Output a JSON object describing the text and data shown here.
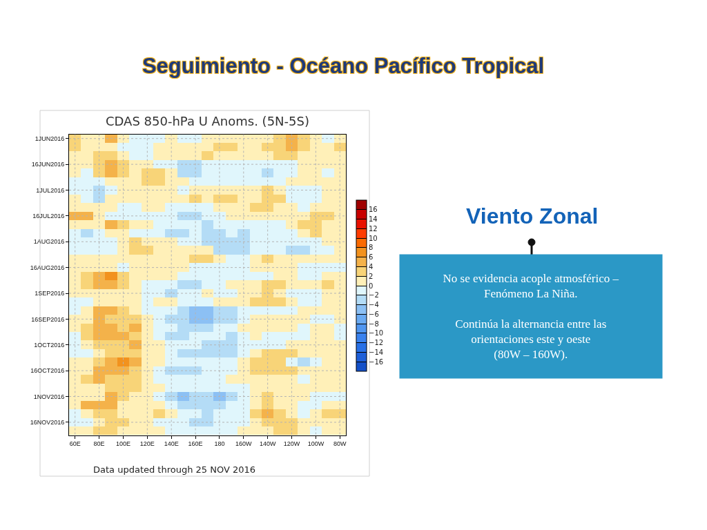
{
  "chart_data": {
    "type": "heatmap",
    "title": "Seguimiento - Océano Pacífico Tropical",
    "subtitle": "CDAS 850-hPa U Anoms. (5N-5S)",
    "categories": [
      "60E",
      null,
      "80E",
      null,
      "100E",
      null,
      "120E",
      null,
      "140E",
      null,
      "160E",
      null,
      "180",
      null,
      "160W",
      null,
      "140W",
      null,
      "120W",
      null,
      "100W",
      null,
      "80W"
    ],
    "y_categories": [
      "1JUN2016",
      null,
      null,
      "16JUN2016",
      null,
      null,
      "1JUL2016",
      null,
      null,
      "16JUL2016",
      null,
      null,
      "1AUG2016",
      null,
      null,
      "16AUG2016",
      null,
      null,
      "1SEP2016",
      null,
      null,
      "16SEP2016",
      null,
      null,
      "1OCT2016",
      null,
      null,
      "16OCT2016",
      null,
      null,
      "1NOV2016",
      null,
      null,
      "16NOV2016",
      null
    ],
    "cells": [
      [
        3,
        1,
        1,
        5,
        1,
        -1,
        -1,
        -1,
        1,
        -1,
        -1,
        1,
        1,
        1,
        1,
        1,
        1,
        3,
        5,
        3,
        1,
        -1,
        1
      ],
      [
        3,
        1,
        1,
        1,
        -1,
        -1,
        -1,
        1,
        1,
        1,
        1,
        1,
        3,
        3,
        1,
        1,
        3,
        3,
        5,
        3,
        1,
        1,
        3
      ],
      [
        1,
        1,
        3,
        3,
        1,
        -1,
        -1,
        1,
        1,
        1,
        1,
        3,
        1,
        1,
        1,
        1,
        1,
        3,
        3,
        1,
        1,
        1,
        1
      ],
      [
        1,
        1,
        3,
        5,
        3,
        1,
        1,
        -1,
        -1,
        -3,
        -3,
        -1,
        -1,
        -1,
        -1,
        -1,
        -1,
        -1,
        -1,
        1,
        1,
        1,
        1
      ],
      [
        1,
        -1,
        3,
        5,
        3,
        1,
        3,
        3,
        1,
        -3,
        -3,
        -1,
        -1,
        -1,
        -1,
        -1,
        -3,
        -1,
        -1,
        1,
        1,
        -1,
        1
      ],
      [
        -1,
        -1,
        -1,
        1,
        1,
        1,
        3,
        3,
        1,
        1,
        -1,
        -1,
        -1,
        -1,
        -1,
        -1,
        -1,
        -1,
        1,
        1,
        1,
        1,
        1
      ],
      [
        -1,
        -1,
        -3,
        -1,
        1,
        1,
        1,
        1,
        1,
        -1,
        1,
        1,
        1,
        1,
        1,
        1,
        3,
        1,
        -1,
        -1,
        -1,
        1,
        1
      ],
      [
        1,
        -1,
        -3,
        1,
        1,
        1,
        1,
        1,
        1,
        1,
        3,
        1,
        3,
        3,
        1,
        1,
        3,
        3,
        -1,
        -1,
        -1,
        1,
        1
      ],
      [
        1,
        1,
        1,
        1,
        -1,
        -1,
        1,
        1,
        -1,
        -1,
        -1,
        -1,
        1,
        1,
        1,
        3,
        3,
        1,
        1,
        -1,
        1,
        1,
        1
      ],
      [
        5,
        5,
        1,
        -1,
        -1,
        -1,
        -1,
        -1,
        -1,
        -3,
        -3,
        -1,
        -1,
        1,
        1,
        1,
        1,
        1,
        1,
        1,
        3,
        3,
        1
      ],
      [
        1,
        1,
        1,
        5,
        3,
        1,
        1,
        -1,
        -1,
        -1,
        -1,
        -3,
        -1,
        -1,
        -1,
        -1,
        -1,
        -1,
        1,
        3,
        3,
        1,
        1
      ],
      [
        -1,
        -3,
        -1,
        1,
        1,
        -1,
        -1,
        -1,
        -3,
        -3,
        -1,
        -3,
        -3,
        -1,
        -3,
        -1,
        -1,
        -1,
        -1,
        1,
        3,
        1,
        1
      ],
      [
        -1,
        -1,
        -1,
        -1,
        1,
        3,
        1,
        1,
        1,
        -1,
        -1,
        -3,
        -3,
        -3,
        -3,
        -1,
        -1,
        -1,
        -1,
        -1,
        -1,
        1,
        1
      ],
      [
        -1,
        -1,
        -1,
        -1,
        1,
        3,
        3,
        1,
        1,
        1,
        1,
        1,
        -3,
        -3,
        -3,
        -1,
        -1,
        -1,
        -3,
        -3,
        -1,
        -1,
        1
      ],
      [
        1,
        1,
        1,
        1,
        1,
        1,
        1,
        1,
        1,
        1,
        3,
        3,
        1,
        -1,
        -1,
        1,
        3,
        1,
        1,
        1,
        1,
        1,
        1
      ],
      [
        1,
        1,
        1,
        1,
        -1,
        1,
        1,
        1,
        1,
        1,
        -1,
        -1,
        -1,
        -1,
        -1,
        1,
        1,
        1,
        1,
        -1,
        -1,
        -1,
        -1
      ],
      [
        1,
        3,
        5,
        7,
        3,
        1,
        1,
        1,
        1,
        -1,
        -1,
        -1,
        -1,
        -1,
        -1,
        -1,
        -1,
        1,
        1,
        -1,
        -1,
        1,
        1
      ],
      [
        1,
        3,
        5,
        5,
        3,
        1,
        -1,
        -1,
        -1,
        -3,
        -3,
        -1,
        -1,
        1,
        1,
        1,
        3,
        3,
        1,
        1,
        1,
        3,
        1
      ],
      [
        1,
        1,
        1,
        1,
        1,
        1,
        -1,
        -1,
        -3,
        -1,
        -1,
        1,
        -1,
        -1,
        1,
        1,
        3,
        1,
        -1,
        -1,
        -1,
        1,
        1
      ],
      [
        -1,
        -1,
        1,
        1,
        1,
        1,
        -1,
        1,
        1,
        -1,
        -1,
        -1,
        1,
        1,
        1,
        3,
        3,
        3,
        1,
        -1,
        -1,
        1,
        1
      ],
      [
        -1,
        1,
        5,
        5,
        3,
        1,
        -1,
        -1,
        -1,
        -3,
        -5,
        -5,
        -3,
        -3,
        -1,
        -1,
        -1,
        -1,
        -1,
        1,
        1,
        1,
        1
      ],
      [
        1,
        1,
        5,
        3,
        3,
        3,
        1,
        -1,
        -3,
        -3,
        -5,
        -5,
        -3,
        -3,
        -1,
        1,
        1,
        1,
        1,
        1,
        -1,
        -1,
        1
      ],
      [
        1,
        3,
        5,
        5,
        3,
        5,
        1,
        -1,
        -1,
        -3,
        -3,
        -3,
        -1,
        -1,
        1,
        1,
        1,
        1,
        1,
        -1,
        1,
        1,
        -1
      ],
      [
        -1,
        3,
        5,
        5,
        5,
        3,
        1,
        -1,
        -3,
        -3,
        -1,
        -1,
        -1,
        -3,
        -1,
        1,
        -1,
        -1,
        -1,
        -1,
        1,
        1,
        -1
      ],
      [
        -1,
        1,
        3,
        3,
        3,
        5,
        1,
        1,
        -1,
        -1,
        -1,
        -3,
        -3,
        -3,
        -1,
        -1,
        -1,
        -1,
        1,
        1,
        1,
        1,
        1
      ],
      [
        -1,
        -1,
        1,
        3,
        3,
        3,
        1,
        1,
        -1,
        -3,
        -3,
        -3,
        -3,
        -3,
        -1,
        1,
        3,
        3,
        3,
        1,
        1,
        1,
        1
      ],
      [
        1,
        1,
        3,
        5,
        7,
        5,
        1,
        1,
        -1,
        -1,
        -1,
        -1,
        -1,
        -1,
        1,
        3,
        3,
        3,
        -1,
        -3,
        -1,
        1,
        1
      ],
      [
        1,
        1,
        5,
        5,
        5,
        3,
        1,
        -1,
        -3,
        -3,
        -3,
        -1,
        -1,
        -1,
        1,
        3,
        3,
        3,
        3,
        1,
        1,
        1,
        1
      ],
      [
        1,
        3,
        5,
        3,
        3,
        3,
        1,
        -1,
        -1,
        -1,
        -1,
        -1,
        -1,
        1,
        1,
        1,
        1,
        1,
        1,
        -1,
        1,
        1,
        1
      ],
      [
        1,
        1,
        1,
        3,
        3,
        3,
        1,
        1,
        -1,
        -1,
        -1,
        -1,
        -1,
        -1,
        -1,
        1,
        1,
        1,
        1,
        1,
        1,
        1,
        1
      ],
      [
        1,
        1,
        1,
        5,
        3,
        1,
        1,
        -1,
        -3,
        -5,
        -3,
        -3,
        -5,
        -3,
        -1,
        1,
        3,
        1,
        1,
        1,
        -1,
        -1,
        -1
      ],
      [
        1,
        5,
        5,
        5,
        1,
        1,
        1,
        1,
        -1,
        -3,
        -3,
        -3,
        -3,
        -1,
        -1,
        1,
        3,
        1,
        1,
        -1,
        -1,
        1,
        1
      ],
      [
        -1,
        1,
        3,
        3,
        1,
        1,
        1,
        3,
        1,
        -1,
        -1,
        -3,
        -1,
        -1,
        -1,
        3,
        5,
        3,
        1,
        -1,
        1,
        3,
        3
      ],
      [
        -1,
        -1,
        1,
        3,
        3,
        1,
        1,
        -1,
        -1,
        -1,
        -3,
        -3,
        -1,
        -1,
        -1,
        1,
        3,
        3,
        3,
        1,
        1,
        1,
        1
      ],
      [
        1,
        1,
        3,
        3,
        1,
        1,
        1,
        1,
        -1,
        -1,
        -1,
        -1,
        -1,
        -1,
        1,
        1,
        1,
        3,
        3,
        1,
        -1,
        1,
        1
      ]
    ],
    "clim": [
      -18,
      18
    ],
    "cticks": [
      -16,
      -14,
      -12,
      -10,
      -8,
      -6,
      -4,
      -2,
      0,
      2,
      4,
      6,
      8,
      10,
      12,
      14,
      16
    ],
    "grid": true,
    "annotations": [
      "Data updated through 25 NOV 2016",
      "Viento Zonal",
      "No se evidencia acople atmosférico – Fenómeno La Niña.\n\nContinúa la alternancia entre las orientaciones este y oeste\n(80W – 160W)."
    ]
  }
}
